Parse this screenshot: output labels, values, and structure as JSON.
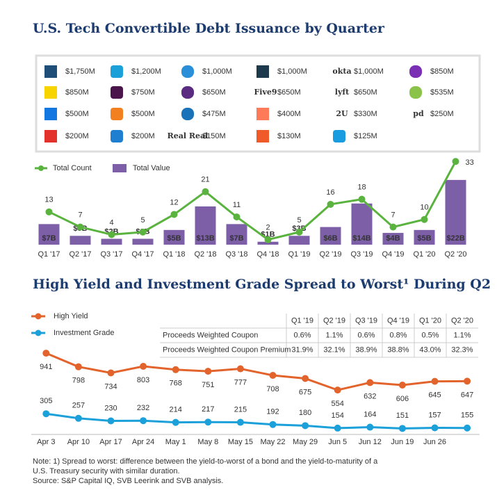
{
  "chart_data": [
    {
      "type": "combo",
      "title": "U.S. Tech Convertible Debt Issuance by Quarter",
      "categories": [
        "Q1 '17",
        "Q2 '17",
        "Q3 '17",
        "Q4 '17",
        "Q1 '18",
        "Q2 '18",
        "Q3 '18",
        "Q4 '18",
        "Q1 '19",
        "Q2 '19",
        "Q3 '19",
        "Q4 '19",
        "Q1 '20",
        "Q2 '20"
      ],
      "series": [
        {
          "name": "Total Count",
          "type": "line",
          "color": "#5bb33f",
          "values": [
            13,
            7,
            4,
            5,
            12,
            21,
            11,
            2,
            5,
            16,
            18,
            7,
            10,
            33
          ]
        },
        {
          "name": "Total Value",
          "type": "bar",
          "axis": "y2",
          "color": "#7d5fa8",
          "values": [
            7,
            3,
            2,
            2,
            5,
            13,
            7,
            1,
            3,
            6,
            14,
            4,
            5,
            22
          ],
          "value_labels": [
            "$7B",
            "$3B",
            "$2B",
            "$2B",
            "$5B",
            "$13B",
            "$7B",
            "$1B",
            "$3B",
            "$6B",
            "$14B",
            "$4B",
            "$5B",
            "$22B"
          ]
        }
      ],
      "ylim": [
        0,
        35
      ],
      "y2lim": [
        0,
        30
      ]
    },
    {
      "type": "line",
      "title": "High Yield and Investment Grade Spread to Worst¹ During Q2",
      "categories": [
        "Apr 3",
        "Apr 10",
        "Apr 17",
        "Apr 24",
        "May 1",
        "May 8",
        "May 15",
        "May 22",
        "May 29",
        "Jun 5",
        "Jun 12",
        "Jun 19",
        "Jun 26",
        null
      ],
      "series": [
        {
          "name": "High Yield",
          "color": "#e2632b",
          "values": [
            941,
            798,
            734,
            803,
            768,
            751,
            777,
            708,
            675,
            554,
            632,
            606,
            645,
            647
          ]
        },
        {
          "name": "Investment Grade",
          "color": "#1ba0da",
          "values": [
            305,
            257,
            230,
            232,
            214,
            217,
            215,
            192,
            180,
            154,
            164,
            151,
            157,
            155
          ]
        }
      ],
      "ylim": [
        0,
        1000
      ]
    }
  ],
  "logos": [
    {
      "amount": "$1,750M"
    },
    {
      "amount": "$1,200M"
    },
    {
      "amount": "$1,000M"
    },
    {
      "amount": "$1,000M"
    },
    {
      "logo": "okta",
      "amount": "$1,000M"
    },
    {
      "amount": "$850M"
    },
    {
      "amount": "$850M"
    },
    {
      "amount": "$750M"
    },
    {
      "amount": "$650M"
    },
    {
      "logo": "Five9",
      "amount": "$650M"
    },
    {
      "logo": "lyft",
      "amount": "$650M"
    },
    {
      "amount": "$535M"
    },
    {
      "amount": "$500M"
    },
    {
      "amount": "$500M"
    },
    {
      "amount": "$475M"
    },
    {
      "amount": "$400M"
    },
    {
      "logo": "2U",
      "amount": "$330M"
    },
    {
      "logo": "pd",
      "amount": "$250M"
    },
    {
      "amount": "$200M"
    },
    {
      "amount": "$200M"
    },
    {
      "logo": "Real Real",
      "amount": "$150M"
    },
    {
      "amount": "$130M"
    },
    {
      "amount": "$125M"
    }
  ],
  "table": {
    "columns": [
      "Q1 '19",
      "Q2 '19",
      "Q3 '19",
      "Q4 '19",
      "Q1 '20",
      "Q2 '20"
    ],
    "rows": [
      {
        "label": "Proceeds Weighted Coupon",
        "values": [
          "0.6%",
          "1.1%",
          "0.6%",
          "0.8%",
          "0.5%",
          "1.1%"
        ]
      },
      {
        "label": "Proceeds Weighted Coupon Premium",
        "values": [
          "31.9%",
          "32.1%",
          "38.9%",
          "38.8%",
          "43.0%",
          "32.3%"
        ]
      }
    ]
  },
  "notes": [
    "Note: 1) Spread to worst: difference between the yield-to-worst of a bond and the yield-to-maturity of a",
    "U.S. Treasury security with similar duration.",
    "Source: S&P Capital IQ, SVB Leerink and SVB analysis."
  ]
}
